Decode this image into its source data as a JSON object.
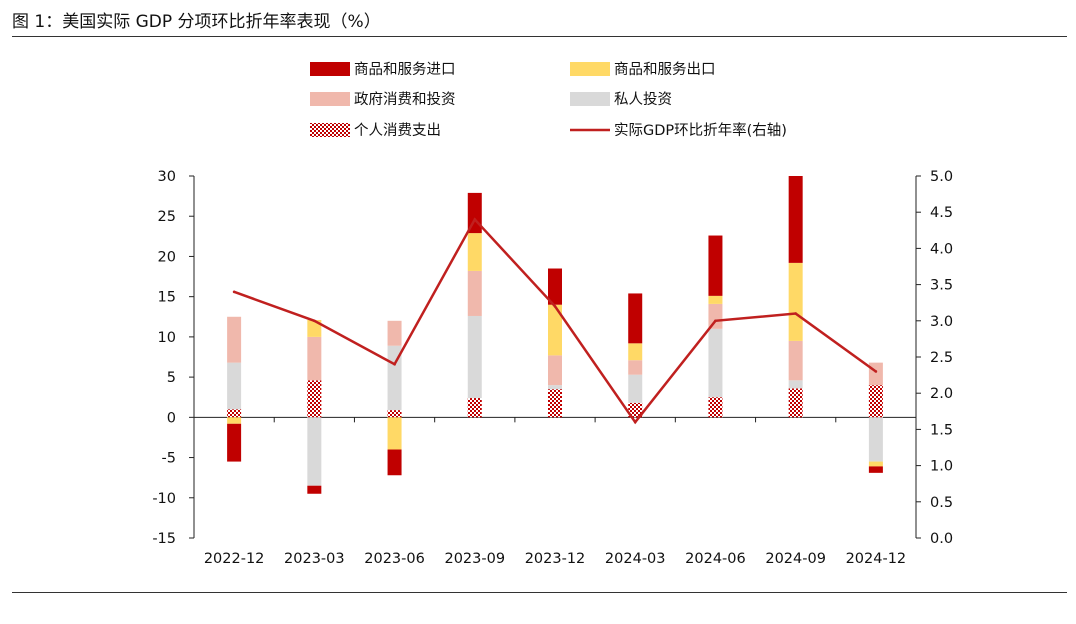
{
  "title": "图 1：美国实际 GDP 分项环比折年率表现（%）",
  "colors": {
    "imports": "#c00000",
    "exports": "#ffd966",
    "government": "#f0b8ac",
    "investment": "#d9d9d9",
    "consumption": "#c00000",
    "gdp_line": "#c0201f"
  },
  "chart_data": {
    "type": "bar",
    "stacked": true,
    "categories": [
      "2022-12",
      "2023-03",
      "2023-06",
      "2023-09",
      "2023-12",
      "2024-03",
      "2024-06",
      "2024-09",
      "2024-12"
    ],
    "series": [
      {
        "key": "consumption",
        "name": "个人消费支出",
        "axis": "left",
        "pattern": "crosshatch",
        "values": [
          1.0,
          4.6,
          0.9,
          2.4,
          3.5,
          1.8,
          2.5,
          3.6,
          4.0
        ]
      },
      {
        "key": "investment",
        "name": "私人投资",
        "axis": "left",
        "values": [
          5.8,
          -8.5,
          8.0,
          10.2,
          0.5,
          3.5,
          8.5,
          1.0,
          -5.5
        ]
      },
      {
        "key": "government",
        "name": "政府消费和投资",
        "axis": "left",
        "values": [
          5.7,
          5.4,
          3.1,
          5.6,
          3.7,
          1.8,
          3.1,
          4.9,
          2.8
        ]
      },
      {
        "key": "exports",
        "name": "商品和服务出口",
        "axis": "left",
        "values": [
          -0.8,
          2.1,
          -4.0,
          4.7,
          6.3,
          2.1,
          1.0,
          9.7,
          -0.6
        ]
      },
      {
        "key": "imports",
        "name": "商品和服务进口",
        "axis": "left",
        "values": [
          -4.7,
          -1.0,
          -3.2,
          5.0,
          4.5,
          6.2,
          7.5,
          10.8,
          -0.8
        ]
      },
      {
        "key": "gdp_line",
        "name": "实际GDP环比折年率(右轴)",
        "axis": "right",
        "type": "line",
        "values": [
          3.4,
          3.0,
          2.4,
          4.4,
          3.2,
          1.6,
          3.0,
          3.1,
          2.3
        ]
      }
    ],
    "ylim_left": [
      -15,
      30
    ],
    "yticks_left": [
      "30",
      "25",
      "20",
      "15",
      "10",
      "5",
      "0",
      "-5",
      "-10",
      "-15"
    ],
    "ylim_right": [
      0,
      5
    ],
    "yticks_right": [
      "5.0",
      "4.5",
      "4.0",
      "3.5",
      "3.0",
      "2.5",
      "2.0",
      "1.5",
      "1.0",
      "0.5",
      "0.0"
    ],
    "legend": [
      {
        "key": "imports",
        "label": "商品和服务进口"
      },
      {
        "key": "exports",
        "label": "商品和服务出口"
      },
      {
        "key": "government",
        "label": "政府消费和投资"
      },
      {
        "key": "investment",
        "label": "私人投资"
      },
      {
        "key": "consumption",
        "label": "个人消费支出"
      },
      {
        "key": "gdp_line",
        "label": "实际GDP环比折年率(右轴)"
      }
    ],
    "legend_position": "top",
    "grid": false
  }
}
